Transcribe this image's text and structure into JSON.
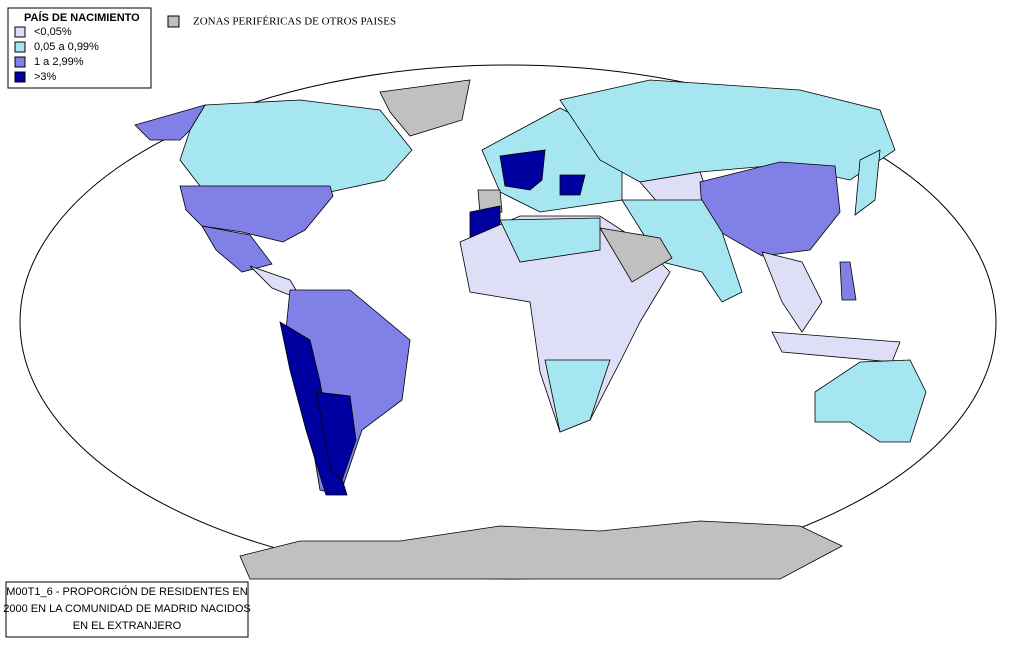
{
  "legend": {
    "title": "PAÍS DE NACIMIENTO",
    "items": [
      {
        "label": "<0,05%",
        "color": "#dedef7"
      },
      {
        "label": "0,05 a 0,99%",
        "color": "#a6e6f0"
      },
      {
        "label": "1 a 2,99%",
        "color": "#8080e6"
      },
      {
        "label": ">3%",
        "color": "#0000a0"
      }
    ]
  },
  "other_zones": {
    "label": "ZONAS PERIFÉRICAS DE OTROS PAISES",
    "color": "#c0c0c0"
  },
  "caption": {
    "lines": [
      "M00T1_6 - PROPORCIÓN DE RESIDENTES EN",
      "2000 EN LA COMUNIDAD DE MADRID NACIDOS",
      "EN EL EXTRANJERO"
    ]
  }
}
